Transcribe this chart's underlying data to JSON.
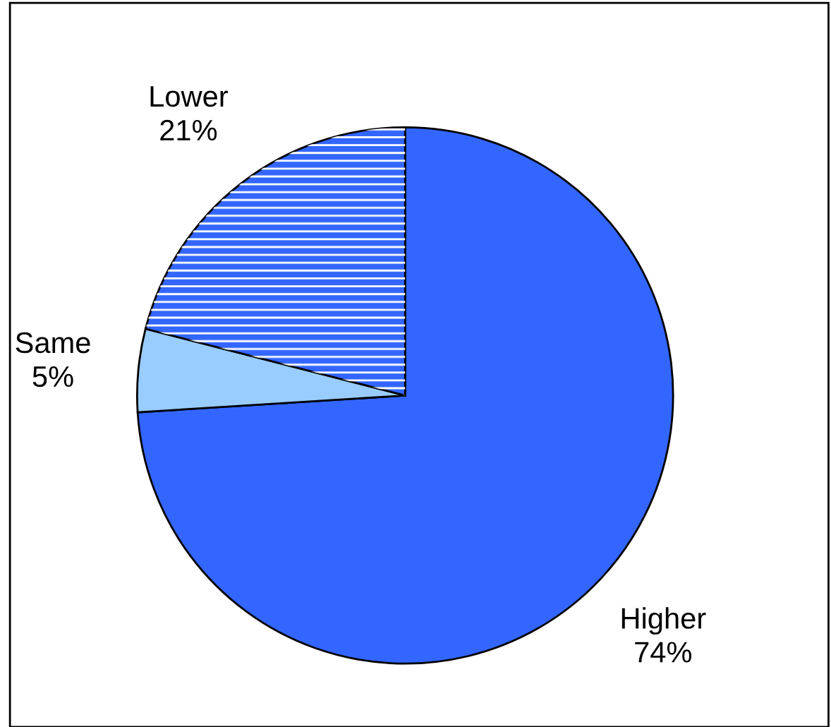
{
  "chart_data": {
    "type": "pie",
    "categories": [
      "Higher",
      "Same",
      "Lower"
    ],
    "values": [
      74,
      5,
      21
    ],
    "value_labels": [
      "74%",
      "5%",
      "21%"
    ],
    "colors": [
      "#3366ff",
      "#99ccff",
      "#3366ff"
    ],
    "legend": false
  }
}
